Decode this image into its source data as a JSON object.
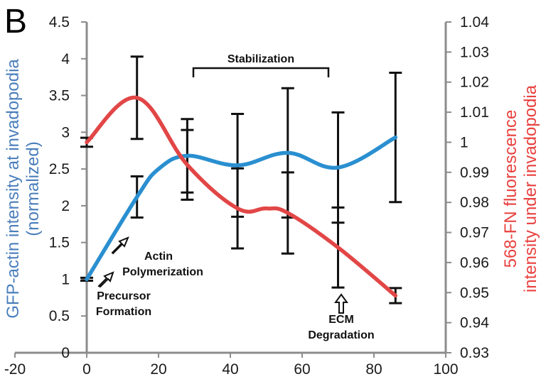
{
  "panel_label": "B",
  "chart_data": {
    "type": "line",
    "x": [
      0,
      14,
      28,
      42,
      56,
      70,
      86
    ],
    "xlim": [
      -20,
      100
    ],
    "xticks": [
      "-20",
      "0",
      "20",
      "40",
      "60",
      "80",
      "100"
    ],
    "left_axis": {
      "label_line1": "GFP-actin intensity at invadopodia",
      "label_line2": "(normalized)",
      "ylim": [
        0,
        4.5
      ],
      "ticks": [
        "0",
        "0.5",
        "1",
        "1.5",
        "2",
        "2.5",
        "3",
        "3.5",
        "4",
        "4.5"
      ],
      "color": "#4a7ebb"
    },
    "right_axis": {
      "label_line1": "568-FN fluorescence",
      "label_line2": "intensity under invadopodia",
      "ylim": [
        0.93,
        1.04
      ],
      "ticks": [
        "0.93",
        "0.94",
        "0.95",
        "0.96",
        "0.97",
        "0.98",
        "0.99",
        "1",
        "1.01",
        "1.02",
        "1.03",
        "1.04"
      ],
      "color": "#e8413f"
    },
    "series": [
      {
        "axis": "left",
        "color": "#2a8fd0",
        "x": [
          0,
          14,
          20,
          28,
          42,
          56,
          70,
          86
        ],
        "values": [
          1.0,
          2.12,
          2.5,
          2.68,
          2.55,
          2.72,
          2.52,
          2.93
        ],
        "errors": [
          0.02,
          0.28,
          null,
          0.5,
          0.7,
          0.88,
          0.75,
          0.88
        ],
        "error_x": [
          0,
          14,
          null,
          28,
          42,
          56,
          70,
          86
        ]
      },
      {
        "axis": "right",
        "color": "#e24646",
        "x": [
          0,
          14,
          28,
          42,
          50,
          56,
          70,
          86
        ],
        "values": [
          1.0,
          1.0148,
          0.9925,
          0.978,
          0.978,
          0.9765,
          0.965,
          0.949
        ],
        "errors": [
          0.0015,
          0.0137,
          0.0116,
          0.0133,
          0.0133,
          0.0135,
          0.0133,
          0.0025
        ],
        "error_x": [
          0,
          14,
          28,
          42,
          null,
          56,
          70,
          86
        ]
      }
    ],
    "annotations": {
      "stabilization": "Stabilization",
      "actin_line1": "Actin",
      "actin_line2": "Polymerization",
      "precursor_line1": "Precursor",
      "precursor_line2": "Formation",
      "ecm_line1": "ECM",
      "ecm_line2": "Degradation"
    }
  }
}
